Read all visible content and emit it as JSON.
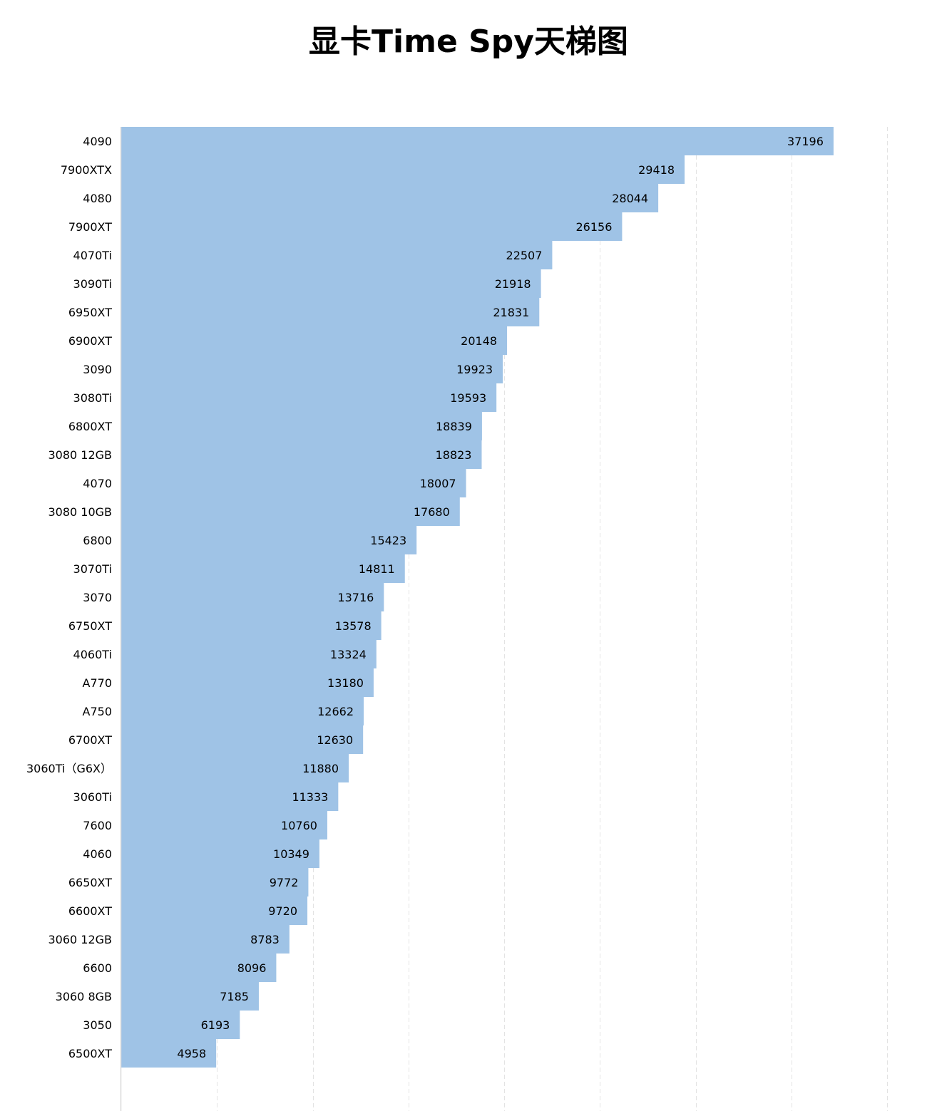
{
  "chart_data": {
    "type": "bar",
    "orientation": "horizontal",
    "title": "显卡Time Spy天梯图",
    "xlabel": "",
    "ylabel": "",
    "xlim": [
      0,
      40000
    ],
    "grid": true,
    "bar_color": "#9fc3e6",
    "categories": [
      "4090",
      "7900XTX",
      "4080",
      "7900XT",
      "4070Ti",
      "3090Ti",
      "6950XT",
      "6900XT",
      "3090",
      "3080Ti",
      "6800XT",
      "3080 12GB",
      "4070",
      "3080 10GB",
      "6800",
      "3070Ti",
      "3070",
      "6750XT",
      "4060Ti",
      "A770",
      "A750",
      "6700XT",
      "3060Ti（G6X）",
      "3060Ti",
      "7600",
      "4060",
      "6650XT",
      "6600XT",
      "3060 12GB",
      "6600",
      "3060 8GB",
      "3050",
      "6500XT"
    ],
    "values": [
      37196,
      29418,
      28044,
      26156,
      22507,
      21918,
      21831,
      20148,
      19923,
      19593,
      18839,
      18823,
      18007,
      17680,
      15423,
      14811,
      13716,
      13578,
      13324,
      13180,
      12662,
      12630,
      11880,
      11333,
      10760,
      10349,
      9772,
      9720,
      8783,
      8096,
      7185,
      6193,
      4958
    ]
  }
}
